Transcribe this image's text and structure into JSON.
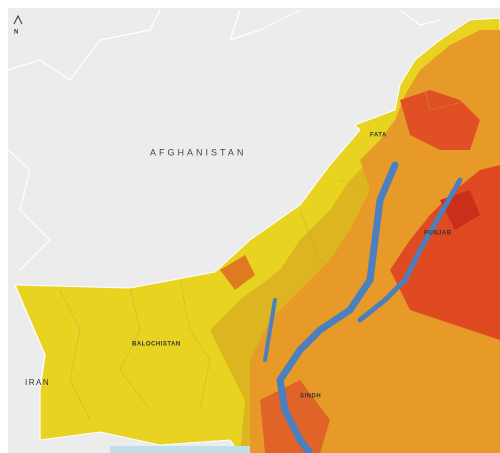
{
  "labels": {
    "afghanistan": "AFGHANISTAN",
    "iran": "IRAN",
    "balochistan": "BALOCHISTAN",
    "sindh": "SINDH",
    "punjab": "PUNJAB",
    "fata": "FATA",
    "north": "N"
  }
}
